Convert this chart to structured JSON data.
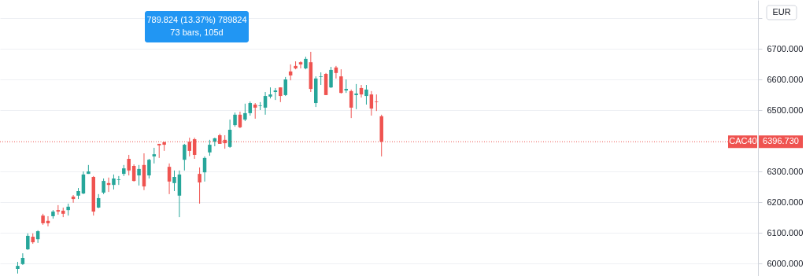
{
  "chart_data": {
    "type": "candlestick",
    "categories": [
      null,
      null,
      null,
      null,
      null,
      null,
      null,
      null,
      null,
      null,
      null,
      null,
      null,
      null,
      null,
      null,
      null,
      null,
      null,
      null,
      null,
      null,
      null,
      null,
      null,
      null,
      null,
      null,
      null,
      null,
      null,
      null,
      null,
      null,
      null,
      null,
      null,
      null,
      null,
      null,
      null,
      null,
      null,
      null,
      null,
      null,
      null,
      null,
      null,
      null,
      null,
      null,
      null,
      null,
      null,
      null,
      null,
      null,
      null,
      null,
      null,
      null,
      null,
      null,
      null,
      null,
      null,
      null,
      null,
      null,
      null,
      null,
      null,
      null,
      null,
      null,
      null,
      null,
      null,
      null,
      null,
      null,
      null,
      null,
      null,
      null,
      null,
      null,
      null,
      null,
      null,
      null,
      null,
      null,
      null,
      null,
      null,
      null,
      null,
      null,
      null,
      null,
      null,
      null,
      null,
      null,
      null,
      null,
      null,
      null,
      null,
      null,
      null,
      null,
      null,
      null,
      null,
      null,
      null,
      null,
      null,
      null,
      null,
      null,
      null,
      null,
      null,
      null,
      null,
      null,
      null,
      null,
      null,
      null,
      null,
      null,
      null,
      null,
      null,
      null,
      null,
      null,
      null,
      null,
      null,
      null,
      null,
      null,
      null,
      null
    ],
    "ohlc": [
      null,
      null,
      null,
      [
        5982,
        6005,
        5967,
        5992
      ],
      [
        5998,
        6033,
        5995,
        6018
      ],
      [
        6046,
        6098,
        6044,
        6090
      ],
      [
        6087,
        6098,
        6064,
        6069
      ],
      [
        6079,
        6108,
        6067,
        6105
      ],
      [
        6156,
        6162,
        6126,
        6131
      ],
      [
        6139,
        6154,
        6121,
        6131
      ],
      [
        6154,
        6174,
        6146,
        6169
      ],
      [
        6174,
        6190,
        6159,
        6169
      ],
      [
        6172,
        6182,
        6151,
        6162
      ],
      [
        6174,
        6195,
        6156,
        6185
      ],
      [
        6218,
        6223,
        6198,
        6210
      ],
      [
        6221,
        6246,
        6210,
        6236
      ],
      [
        6228,
        6300,
        6226,
        6290
      ],
      [
        6292,
        6321,
        6292,
        6300
      ],
      [
        6282,
        6285,
        6156,
        6169
      ],
      [
        6182,
        6226,
        6180,
        6213
      ],
      [
        6231,
        6277,
        6226,
        6269
      ],
      [
        6262,
        6280,
        6233,
        6256
      ],
      [
        6256,
        6290,
        6241,
        6277
      ],
      [
        6272,
        6285,
        6256,
        6274
      ],
      [
        6292,
        6321,
        6285,
        6310
      ],
      [
        6341,
        6354,
        6287,
        6303
      ],
      [
        6318,
        6323,
        6267,
        6269
      ],
      [
        6287,
        6321,
        6254,
        6308
      ],
      [
        6321,
        6359,
        6239,
        6251
      ],
      [
        6287,
        6341,
        6277,
        6338
      ],
      [
        6349,
        6377,
        6326,
        6356
      ],
      [
        6390,
        6390,
        6344,
        6385
      ],
      [
        6395,
        6397,
        6367,
        6387
      ],
      [
        6315,
        6326,
        6226,
        6267
      ],
      [
        6262,
        6303,
        6236,
        6282
      ],
      [
        6221,
        6303,
        6151,
        6290
      ],
      [
        6338,
        6390,
        6303,
        6387
      ],
      [
        6397,
        6410,
        6349,
        6367
      ],
      [
        6405,
        6410,
        6341,
        6354
      ],
      [
        6292,
        6313,
        6195,
        6264
      ],
      [
        6297,
        6349,
        6267,
        6344
      ],
      [
        6362,
        6403,
        6351,
        6387
      ],
      [
        6397,
        6410,
        6382,
        6408
      ],
      [
        6418,
        6423,
        6390,
        6390
      ],
      [
        6403,
        6418,
        6374,
        6392
      ],
      [
        6380,
        6469,
        6377,
        6436
      ],
      [
        6451,
        6492,
        6446,
        6485
      ],
      [
        6485,
        6495,
        6441,
        6444
      ],
      [
        6469,
        6521,
        6464,
        6490
      ],
      [
        6490,
        6528,
        6482,
        6523
      ],
      [
        6518,
        6523,
        6472,
        6508
      ],
      [
        6513,
        6526,
        6500,
        6515
      ],
      [
        6508,
        6559,
        6485,
        6546
      ],
      [
        6544,
        6574,
        6538,
        6551
      ],
      [
        6559,
        6572,
        6533,
        6564
      ],
      [
        6574,
        6574,
        6526,
        6546
      ],
      [
        6549,
        6608,
        6546,
        6600
      ],
      [
        6626,
        6649,
        6597,
        6613
      ],
      [
        6644,
        6659,
        6633,
        6636
      ],
      [
        6656,
        6659,
        6636,
        6649
      ],
      [
        6636,
        6674,
        6633,
        6667
      ],
      [
        6656,
        6690,
        6559,
        6569
      ],
      [
        6523,
        6610,
        6510,
        6603
      ],
      [
        6608,
        6623,
        6582,
        6610
      ],
      [
        6618,
        6621,
        6549,
        6549
      ],
      [
        6574,
        6641,
        6572,
        6631
      ],
      [
        6639,
        6644,
        6603,
        6621
      ],
      [
        6610,
        6633,
        6554,
        6556
      ],
      [
        6564,
        6600,
        6556,
        6569
      ],
      [
        6562,
        6567,
        6474,
        6508
      ],
      [
        6549,
        6585,
        6503,
        6554
      ],
      [
        6572,
        6582,
        6541,
        6551
      ],
      [
        6546,
        6582,
        6518,
        6567
      ],
      [
        6551,
        6562,
        6482,
        6505
      ],
      [
        6528,
        6551,
        6497,
        6526
      ],
      [
        6480,
        6485,
        6349,
        6397
      ],
      null,
      null,
      null,
      null,
      null,
      null,
      null,
      null,
      null,
      null,
      null,
      null,
      null,
      null,
      null,
      null,
      null,
      null,
      null,
      null,
      null,
      null,
      null,
      null,
      null,
      null,
      null,
      null,
      null,
      null,
      null,
      null,
      null,
      null,
      null,
      null,
      null,
      null,
      null,
      null,
      null,
      null,
      null,
      null,
      null,
      null,
      null,
      null,
      null,
      null,
      null,
      null,
      null,
      null,
      null,
      null,
      null,
      null,
      null,
      null,
      null,
      null,
      null,
      null,
      null,
      null,
      null,
      null,
      null,
      null,
      null,
      null,
      null,
      null
    ],
    "colors": [
      null,
      null,
      null,
      "#26a69a",
      "#26a69a",
      "#26a69a",
      "#ef5350",
      "#26a69a",
      "#ef5350",
      "#ef5350",
      "#26a69a",
      "#ef5350",
      "#ef5350",
      "#26a69a",
      "#ef5350",
      "#26a69a",
      "#26a69a",
      "#26a69a",
      "#ef5350",
      "#26a69a",
      "#26a69a",
      "#ef5350",
      "#26a69a",
      "#26a69a",
      "#26a69a",
      "#ef5350",
      "#ef5350",
      "#26a69a",
      "#ef5350",
      "#26a69a",
      "#26a69a",
      "#ef5350",
      "#ef5350",
      "#ef5350",
      "#26a69a",
      "#26a69a",
      "#26a69a",
      "#ef5350",
      "#ef5350",
      "#ef5350",
      "#26a69a",
      "#26a69a",
      "#26a69a",
      "#ef5350",
      "#ef5350",
      "#26a69a",
      "#26a69a",
      "#ef5350",
      "#26a69a",
      "#26a69a",
      "#ef5350",
      "#26a69a",
      "#26a69a",
      "#26a69a",
      "#26a69a",
      "#ef5350",
      "#26a69a",
      "#ef5350",
      "#ef5350",
      "#ef5350",
      "#26a69a",
      "#ef5350",
      "#26a69a",
      "#26a69a",
      "#ef5350",
      "#26a69a",
      "#ef5350",
      "#ef5350",
      "#26a69a",
      "#ef5350",
      "#26a69a",
      "#ef5350",
      "#26a69a",
      "#ef5350",
      "#ef5350",
      "#ef5350",
      null,
      null,
      null,
      null,
      null,
      null,
      null,
      null,
      null,
      null,
      null,
      null,
      null,
      null,
      null,
      null,
      null,
      null,
      null,
      null,
      null,
      null,
      null,
      null,
      null,
      null,
      null,
      null,
      null,
      null,
      null,
      null,
      null,
      null,
      null,
      null,
      null,
      null,
      null,
      null,
      null,
      null,
      null,
      null,
      null,
      null,
      null,
      null,
      null,
      null,
      null,
      null,
      null,
      null,
      null,
      null,
      null,
      null,
      null,
      null,
      null,
      null,
      null,
      null,
      null,
      null,
      null,
      null,
      null,
      null,
      null,
      null,
      null,
      null
    ],
    "ylim": [
      5959,
      6859
    ],
    "yticks": [
      {
        "value": 6000,
        "label": "6000.000"
      },
      {
        "value": 6100,
        "label": "6100.000"
      },
      {
        "value": 6200,
        "label": "6200.000"
      },
      {
        "value": 6300,
        "label": "6300.000"
      },
      {
        "value": 6500,
        "label": "6500.000"
      },
      {
        "value": 6600,
        "label": "6600.000"
      },
      {
        "value": 6700,
        "label": "6700.000"
      },
      {
        "value": 6800,
        "label": null
      }
    ],
    "tick_labels": "y",
    "grid": "y",
    "ref_lines": [
      {
        "axis": "y",
        "value": 6396.73,
        "label": "CAC40",
        "color": "#ef5350",
        "line_style": "dotted"
      }
    ],
    "annotations": [
      "789.824 (13.37%) 789824",
      "73 bars, 105d",
      "EUR",
      "6396.730"
    ]
  }
}
